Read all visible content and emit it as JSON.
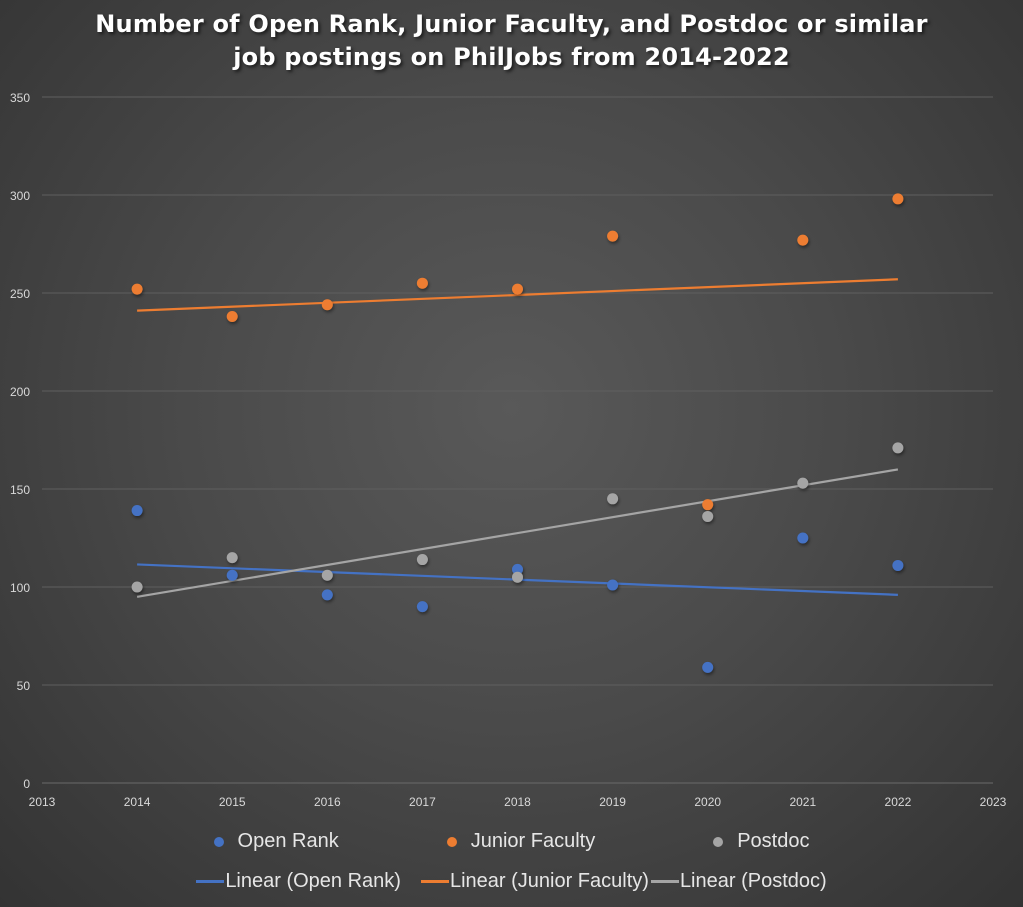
{
  "chart_data": {
    "type": "scatter",
    "title": "Number of Open Rank, Junior Faculty, and Postdoc or similar job postings on PhilJobs from 2014-2022",
    "title_lines": [
      "Number of Open Rank, Junior Faculty, and Postdoc or similar",
      "job postings on PhilJobs from 2014-2022"
    ],
    "xlabel": "",
    "ylabel": "",
    "xlim": [
      2013,
      2023
    ],
    "ylim": [
      0,
      350
    ],
    "x_ticks": [
      2013,
      2014,
      2015,
      2016,
      2017,
      2018,
      2019,
      2020,
      2021,
      2022,
      2023
    ],
    "y_ticks": [
      0,
      50,
      100,
      150,
      200,
      250,
      300,
      350
    ],
    "grid": "horizontal",
    "legend_position": "bottom",
    "x": [
      2014,
      2015,
      2016,
      2017,
      2018,
      2019,
      2020,
      2021,
      2022
    ],
    "series": [
      {
        "name": "Open Rank",
        "color": "#4472c4",
        "values": [
          139,
          106,
          96,
          90,
          109,
          101,
          59,
          125,
          111
        ],
        "trendline": {
          "name": "Linear (Open Rank)",
          "start": [
            2014,
            111.5
          ],
          "end": [
            2022,
            96
          ]
        }
      },
      {
        "name": "Junior Faculty",
        "color": "#ed7d31",
        "values": [
          252,
          238,
          244,
          255,
          252,
          279,
          142,
          277,
          298
        ],
        "trendline": {
          "name": "Linear (Junior Faculty)",
          "start": [
            2014,
            241
          ],
          "end": [
            2022,
            257
          ]
        }
      },
      {
        "name": "Postdoc",
        "color": "#a5a5a5",
        "values": [
          100,
          115,
          106,
          114,
          105,
          145,
          136,
          153,
          171
        ],
        "trendline": {
          "name": "Linear (Postdoc)",
          "start": [
            2014,
            95
          ],
          "end": [
            2022,
            160
          ]
        }
      }
    ]
  },
  "legend": {
    "markers": [
      {
        "label": "Open Rank",
        "color": "#4472c4"
      },
      {
        "label": "Junior Faculty",
        "color": "#ed7d31"
      },
      {
        "label": "Postdoc",
        "color": "#a5a5a5"
      }
    ],
    "lines": [
      {
        "label": "Linear (Open Rank)",
        "color": "#4472c4"
      },
      {
        "label": "Linear (Junior Faculty)",
        "color": "#ed7d31"
      },
      {
        "label": "Linear (Postdoc)",
        "color": "#a5a5a5"
      }
    ]
  }
}
